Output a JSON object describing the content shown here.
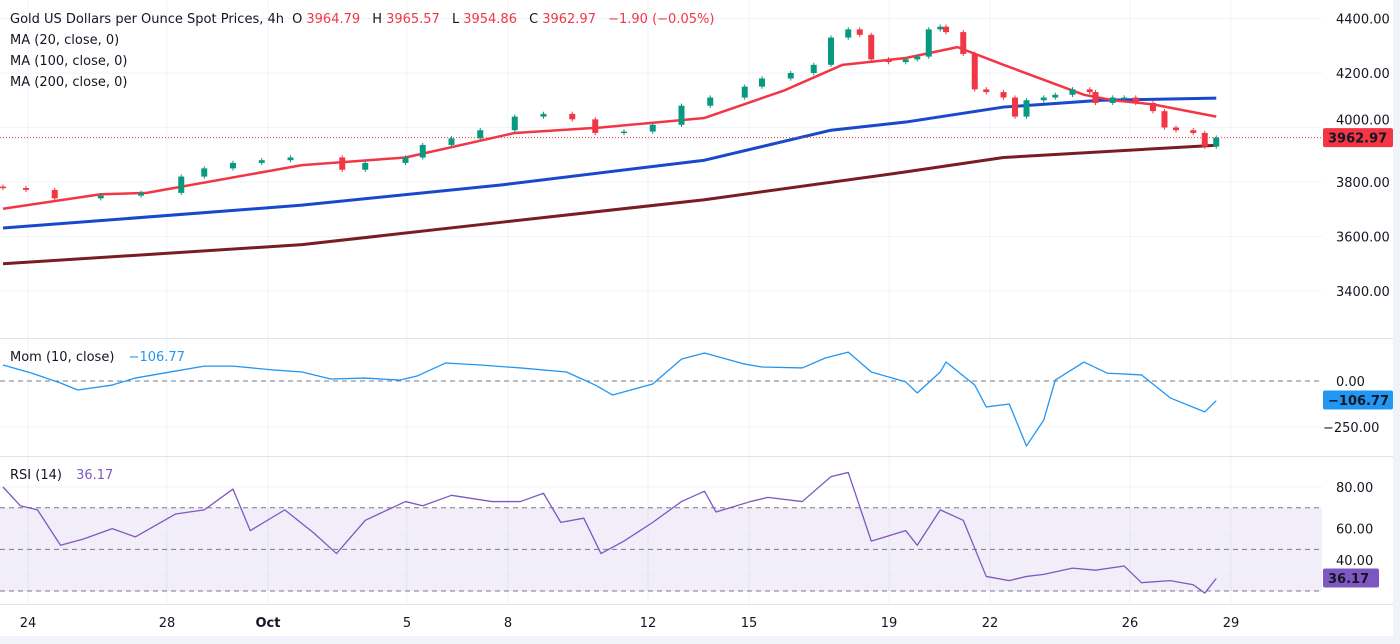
{
  "header": {
    "symbol": "Gold US Dollars per Ounce Spot Prices, 4h",
    "o_label": "O",
    "o": "3964.79",
    "h_label": "H",
    "h": "3965.57",
    "l_label": "L",
    "l": "3954.86",
    "c_label": "C",
    "c": "3962.97",
    "change": "−1.90 (−0.05%)",
    "ma1": "MA (20, close, 0)",
    "ma2": "MA (100, close, 0)",
    "ma3": "MA (200, close, 0)"
  },
  "mom_panel": {
    "title": "Mom (10, close)",
    "value": "−106.77"
  },
  "rsi_panel": {
    "title": "RSI (14)",
    "value": "36.17"
  },
  "colors": {
    "up": "#089981",
    "down": "#f23645",
    "ma20": "#f23645",
    "ma100": "#1848cc",
    "ma200": "#7b1c24",
    "mom": "#2196f3",
    "rsi": "#7e57c2"
  },
  "chart_data": [
    {
      "type": "candlestick",
      "x_unit": "4h bar",
      "ylim": [
        3260,
        4430
      ],
      "y_ticks": [
        "4400.00",
        "4200.00",
        "4000.00",
        "3800.00",
        "3600.00",
        "3400.00"
      ],
      "last_price_label": "3962.97",
      "x_tick_labels": [
        "24",
        "28",
        "Oct",
        "5",
        "8",
        "12",
        "15",
        "19",
        "22",
        "26",
        "29"
      ],
      "closes": [
        [
          0,
          3778
        ],
        [
          4,
          3771
        ],
        [
          9,
          3740
        ],
        [
          17,
          3750
        ],
        [
          24,
          3760
        ],
        [
          31,
          3820
        ],
        [
          35,
          3850
        ],
        [
          40,
          3870
        ],
        [
          45,
          3880
        ],
        [
          50,
          3890
        ],
        [
          59,
          3845
        ],
        [
          63,
          3870
        ],
        [
          70,
          3890
        ],
        [
          73,
          3936
        ],
        [
          78,
          3960
        ],
        [
          83,
          3990
        ],
        [
          89,
          4040
        ],
        [
          94,
          4050
        ],
        [
          99,
          4030
        ],
        [
          103,
          3980
        ],
        [
          108,
          3985
        ],
        [
          113,
          4010
        ],
        [
          118,
          4080
        ],
        [
          123,
          4110
        ],
        [
          129,
          4150
        ],
        [
          132,
          4180
        ],
        [
          137,
          4200
        ],
        [
          141,
          4230
        ],
        [
          144,
          4330
        ],
        [
          147,
          4360
        ],
        [
          149,
          4340
        ],
        [
          151,
          4250
        ],
        [
          154,
          4240
        ],
        [
          157,
          4250
        ],
        [
          159,
          4260
        ],
        [
          161,
          4360
        ],
        [
          163,
          4370
        ],
        [
          164,
          4350
        ],
        [
          167,
          4270
        ],
        [
          169,
          4140
        ],
        [
          171,
          4130
        ],
        [
          174,
          4110
        ],
        [
          176,
          4040
        ],
        [
          178,
          4100
        ],
        [
          181,
          4110
        ],
        [
          183,
          4120
        ],
        [
          186,
          4140
        ],
        [
          189,
          4130
        ],
        [
          190,
          4090
        ],
        [
          193,
          4110
        ],
        [
          195,
          4110
        ],
        [
          197,
          4090
        ],
        [
          200,
          4060
        ],
        [
          202,
          4000
        ],
        [
          204,
          3990
        ],
        [
          207,
          3980
        ],
        [
          209,
          3930
        ],
        [
          211,
          3963
        ]
      ],
      "series": [
        {
          "name": "MA (20, close, 0)",
          "points": [
            [
              0,
              3702
            ],
            [
              17,
              3755
            ],
            [
              25,
              3760
            ],
            [
              52,
              3862
            ],
            [
              70,
              3890
            ],
            [
              89,
              3980
            ],
            [
              104,
              4000
            ],
            [
              122,
              4035
            ],
            [
              136,
              4137
            ],
            [
              146,
              4230
            ],
            [
              157,
              4255
            ],
            [
              166,
              4295
            ],
            [
              174,
              4230
            ],
            [
              181,
              4175
            ],
            [
              188,
              4120
            ],
            [
              193,
              4100
            ],
            [
              200,
              4085
            ],
            [
              211,
              4040
            ]
          ]
        },
        {
          "name": "MA (100, close, 0)",
          "points": [
            [
              0,
              3631
            ],
            [
              52,
              3715
            ],
            [
              87,
              3790
            ],
            [
              122,
              3880
            ],
            [
              144,
              3990
            ],
            [
              157,
              4020
            ],
            [
              174,
              4075
            ],
            [
              191,
              4100
            ],
            [
              211,
              4108
            ]
          ]
        },
        {
          "name": "MA (200, close, 0)",
          "points": [
            [
              0,
              3500
            ],
            [
              52,
              3570
            ],
            [
              87,
              3653
            ],
            [
              122,
              3735
            ],
            [
              157,
              3837
            ],
            [
              174,
              3890
            ],
            [
              211,
              3935
            ]
          ]
        }
      ]
    },
    {
      "type": "line",
      "name": "Mom (10, close)",
      "ylim": [
        -380,
        190
      ],
      "y_ticks": [
        "0.00",
        "-250.00"
      ],
      "points": [
        [
          0,
          87
        ],
        [
          5,
          43
        ],
        [
          10,
          -11
        ],
        [
          13,
          -49
        ],
        [
          19,
          -22
        ],
        [
          23,
          16
        ],
        [
          30,
          54
        ],
        [
          35,
          81
        ],
        [
          40,
          81
        ],
        [
          47,
          60
        ],
        [
          52,
          49
        ],
        [
          57,
          11
        ],
        [
          63,
          16
        ],
        [
          69,
          5
        ],
        [
          72,
          27
        ],
        [
          77,
          98
        ],
        [
          83,
          87
        ],
        [
          90,
          71
        ],
        [
          98,
          49
        ],
        [
          103,
          -22
        ],
        [
          106,
          -76
        ],
        [
          113,
          -16
        ],
        [
          118,
          119
        ],
        [
          122,
          152
        ],
        [
          129,
          92
        ],
        [
          132,
          76
        ],
        [
          139,
          71
        ],
        [
          143,
          125
        ],
        [
          147,
          157
        ],
        [
          151,
          49
        ],
        [
          157,
          -5
        ],
        [
          159,
          -65
        ],
        [
          163,
          49
        ],
        [
          164,
          103
        ],
        [
          169,
          -22
        ],
        [
          171,
          -141
        ],
        [
          175,
          -125
        ],
        [
          178,
          -353
        ],
        [
          181,
          -212
        ],
        [
          183,
          5
        ],
        [
          188,
          103
        ],
        [
          192,
          43
        ],
        [
          198,
          33
        ],
        [
          203,
          -92
        ],
        [
          209,
          -168
        ],
        [
          211,
          -107
        ]
      ]
    },
    {
      "type": "line",
      "name": "RSI (14)",
      "ylim": [
        20,
        95
      ],
      "y_ticks": [
        "80.00",
        "60.00",
        "40.00"
      ],
      "bands": [
        30,
        50,
        70
      ],
      "points": [
        [
          0,
          80
        ],
        [
          3,
          71
        ],
        [
          6,
          69
        ],
        [
          10,
          52
        ],
        [
          14,
          55
        ],
        [
          19,
          60
        ],
        [
          23,
          56
        ],
        [
          30,
          67
        ],
        [
          35,
          69
        ],
        [
          40,
          79
        ],
        [
          43,
          59
        ],
        [
          49,
          69
        ],
        [
          54,
          58
        ],
        [
          58,
          48
        ],
        [
          63,
          64
        ],
        [
          70,
          73
        ],
        [
          73,
          71
        ],
        [
          78,
          76
        ],
        [
          85,
          73
        ],
        [
          90,
          73
        ],
        [
          94,
          77
        ],
        [
          97,
          63
        ],
        [
          101,
          65
        ],
        [
          104,
          48
        ],
        [
          108,
          54
        ],
        [
          113,
          63
        ],
        [
          118,
          73
        ],
        [
          122,
          78
        ],
        [
          124,
          68
        ],
        [
          130,
          73
        ],
        [
          133,
          75
        ],
        [
          139,
          73
        ],
        [
          144,
          85
        ],
        [
          147,
          87
        ],
        [
          151,
          54
        ],
        [
          157,
          59
        ],
        [
          159,
          52
        ],
        [
          163,
          69
        ],
        [
          167,
          64
        ],
        [
          171,
          37
        ],
        [
          175,
          35
        ],
        [
          178,
          37
        ],
        [
          181,
          38
        ],
        [
          186,
          41
        ],
        [
          190,
          40
        ],
        [
          195,
          42
        ],
        [
          198,
          34
        ],
        [
          203,
          35
        ],
        [
          207,
          33
        ],
        [
          209,
          29
        ],
        [
          211,
          36
        ]
      ]
    }
  ]
}
